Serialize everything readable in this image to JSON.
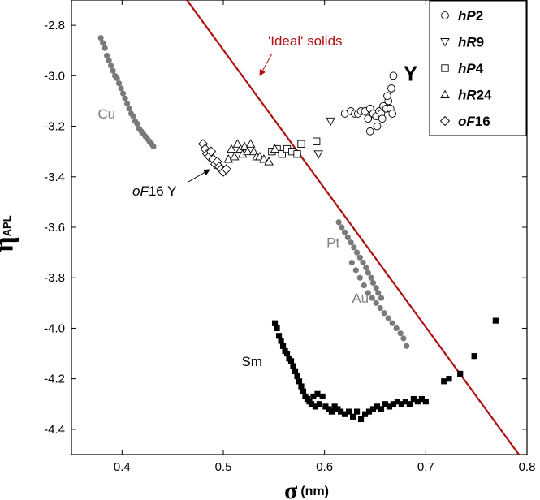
{
  "chart_data": {
    "type": "scatter",
    "title": "",
    "xlabel": "σ",
    "xlabel_unit": "(nm)",
    "ylabel": "η",
    "ylabel_sub": "APL",
    "xlim": [
      0.35,
      0.8
    ],
    "ylim": [
      -4.5,
      -2.7
    ],
    "xticks": [
      0.4,
      0.5,
      0.6,
      0.7,
      0.8
    ],
    "xtick_labels": [
      "0.4",
      "0.5",
      "0.6",
      "0.7",
      "0.8"
    ],
    "yticks": [
      -4.4,
      -4.2,
      -4.0,
      -3.8,
      -3.6,
      -3.4,
      -3.2,
      -3.0,
      -2.8
    ],
    "ytick_labels": [
      "-4.4",
      "-4.2",
      "-4.0",
      "-3.8",
      "-3.6",
      "-3.4",
      "-3.2",
      "-3.0",
      "-2.8"
    ],
    "grid": false,
    "legend_position": "top-right",
    "legend": [
      {
        "marker": "circle",
        "label": "hP2",
        "italic": "hP",
        "plain": "2"
      },
      {
        "marker": "triangle-down",
        "label": "hR9",
        "italic": "hR",
        "plain": "9"
      },
      {
        "marker": "square",
        "label": "hP4",
        "italic": "hP",
        "plain": "4"
      },
      {
        "marker": "triangle-up",
        "label": "hR24",
        "italic": "hR",
        "plain": "24"
      },
      {
        "marker": "diamond",
        "label": "oF16",
        "italic": "oF",
        "plain": "16"
      }
    ],
    "ideal_line": {
      "label": "'Ideal' solids",
      "color": "#b01010",
      "points": [
        [
          0.464,
          -2.7
        ],
        [
          0.792,
          -4.5
        ]
      ]
    },
    "annotations": [
      {
        "text": "Y",
        "x": 0.678,
        "y": -3.0,
        "color": "#000000",
        "bold": true
      },
      {
        "text": "Cu",
        "x": 0.376,
        "y": -3.15,
        "color": "#808080"
      },
      {
        "text": "Pt",
        "x": 0.602,
        "y": -3.66,
        "color": "#808080"
      },
      {
        "text": "Au",
        "x": 0.627,
        "y": -3.88,
        "color": "#808080"
      },
      {
        "text": "Sm",
        "x": 0.518,
        "y": -4.13,
        "color": "#000000"
      }
    ],
    "oF16_label": {
      "italic": "oF",
      "plain": "16 Y"
    },
    "series": [
      {
        "name": "Cu",
        "marker": "circle-filled",
        "color": "#7a7a7a",
        "x": [
          0.379,
          0.381,
          0.383,
          0.385,
          0.387,
          0.389,
          0.391,
          0.393,
          0.395,
          0.397,
          0.399,
          0.401,
          0.403,
          0.405,
          0.407,
          0.409,
          0.411,
          0.413,
          0.415,
          0.417,
          0.419,
          0.421,
          0.423,
          0.425,
          0.427,
          0.429,
          0.431
        ],
        "y": [
          -2.85,
          -2.87,
          -2.89,
          -2.92,
          -2.94,
          -2.96,
          -2.98,
          -3.0,
          -3.01,
          -3.03,
          -3.05,
          -3.07,
          -3.09,
          -3.11,
          -3.13,
          -3.15,
          -3.16,
          -3.18,
          -3.19,
          -3.21,
          -3.22,
          -3.23,
          -3.24,
          -3.25,
          -3.26,
          -3.27,
          -3.28
        ]
      },
      {
        "name": "Pt",
        "marker": "circle-filled",
        "color": "#7a7a7a",
        "x": [
          0.614,
          0.617,
          0.62,
          0.623,
          0.626,
          0.629,
          0.632,
          0.635,
          0.638,
          0.641,
          0.643,
          0.646,
          0.648,
          0.651,
          0.653,
          0.656
        ],
        "y": [
          -3.58,
          -3.6,
          -3.62,
          -3.64,
          -3.66,
          -3.68,
          -3.7,
          -3.72,
          -3.74,
          -3.76,
          -3.78,
          -3.8,
          -3.82,
          -3.84,
          -3.86,
          -3.88
        ]
      },
      {
        "name": "Au",
        "marker": "circle-filled",
        "color": "#7a7a7a",
        "x": [
          0.627,
          0.631,
          0.635,
          0.639,
          0.643,
          0.647,
          0.651,
          0.655,
          0.659,
          0.663,
          0.667,
          0.671,
          0.675,
          0.678,
          0.681
        ],
        "y": [
          -3.74,
          -3.77,
          -3.8,
          -3.83,
          -3.86,
          -3.88,
          -3.9,
          -3.92,
          -3.94,
          -3.96,
          -3.98,
          -4.0,
          -4.02,
          -4.04,
          -4.07
        ]
      },
      {
        "name": "Sm",
        "marker": "square-filled",
        "color": "#000000",
        "x": [
          0.551,
          0.553,
          0.555,
          0.557,
          0.559,
          0.561,
          0.563,
          0.565,
          0.567,
          0.569,
          0.571,
          0.573,
          0.575,
          0.577,
          0.579,
          0.581,
          0.583,
          0.585,
          0.587,
          0.589,
          0.591,
          0.593,
          0.595,
          0.598,
          0.601,
          0.604,
          0.607,
          0.61,
          0.613,
          0.616,
          0.62,
          0.624,
          0.628,
          0.632,
          0.636,
          0.64,
          0.644,
          0.648,
          0.652,
          0.656,
          0.66,
          0.664,
          0.668,
          0.672,
          0.676,
          0.68,
          0.684,
          0.688,
          0.692,
          0.696,
          0.7,
          0.718,
          0.723,
          0.734,
          0.748,
          0.769
        ],
        "y": [
          -3.98,
          -4.0,
          -4.03,
          -4.05,
          -4.07,
          -4.09,
          -4.1,
          -4.12,
          -4.13,
          -4.15,
          -4.17,
          -4.19,
          -4.21,
          -4.23,
          -4.25,
          -4.27,
          -4.28,
          -4.29,
          -4.3,
          -4.27,
          -4.31,
          -4.26,
          -4.3,
          -4.27,
          -4.31,
          -4.32,
          -4.33,
          -4.31,
          -4.32,
          -4.33,
          -4.34,
          -4.33,
          -4.35,
          -4.33,
          -4.36,
          -4.34,
          -4.33,
          -4.32,
          -4.31,
          -4.32,
          -4.3,
          -4.31,
          -4.3,
          -4.29,
          -4.3,
          -4.29,
          -4.3,
          -4.28,
          -4.29,
          -4.28,
          -4.29,
          -4.21,
          -4.2,
          -4.18,
          -4.11,
          -3.97
        ]
      },
      {
        "name": "hP2",
        "marker": "circle",
        "x": [
          0.62,
          0.626,
          0.63,
          0.633,
          0.636,
          0.64,
          0.643,
          0.645,
          0.648,
          0.651,
          0.654,
          0.656,
          0.658,
          0.661,
          0.663,
          0.666,
          0.668,
          0.662,
          0.665,
          0.667,
          0.645,
          0.652,
          0.657
        ],
        "y": [
          -3.15,
          -3.14,
          -3.15,
          -3.15,
          -3.14,
          -3.14,
          -3.17,
          -3.13,
          -3.15,
          -3.16,
          -3.14,
          -3.15,
          -3.12,
          -3.13,
          -3.1,
          -3.05,
          -3.0,
          -3.08,
          -3.13,
          -3.15,
          -3.22,
          -3.2,
          -3.17
        ]
      },
      {
        "name": "hR9",
        "marker": "triangle-down",
        "x": [
          0.606,
          0.594
        ],
        "y": [
          -3.18,
          -3.31
        ]
      },
      {
        "name": "hP4",
        "marker": "square",
        "x": [
          0.548,
          0.553,
          0.558,
          0.563,
          0.568,
          0.573,
          0.577,
          0.592
        ],
        "y": [
          -3.3,
          -3.29,
          -3.31,
          -3.29,
          -3.3,
          -3.31,
          -3.27,
          -3.26
        ]
      },
      {
        "name": "hR24",
        "marker": "triangle-up",
        "x": [
          0.505,
          0.508,
          0.511,
          0.514,
          0.517,
          0.519,
          0.521,
          0.524,
          0.527,
          0.53,
          0.533,
          0.536,
          0.54,
          0.545,
          0.551
        ],
        "y": [
          -3.33,
          -3.29,
          -3.32,
          -3.27,
          -3.29,
          -3.31,
          -3.28,
          -3.3,
          -3.27,
          -3.3,
          -3.32,
          -3.32,
          -3.33,
          -3.34,
          -3.29
        ]
      },
      {
        "name": "oF16",
        "marker": "diamond",
        "x": [
          0.48,
          0.482,
          0.484,
          0.486,
          0.488,
          0.49,
          0.492,
          0.494,
          0.496,
          0.498,
          0.5,
          0.503
        ],
        "y": [
          -3.27,
          -3.29,
          -3.31,
          -3.32,
          -3.3,
          -3.33,
          -3.35,
          -3.34,
          -3.36,
          -3.37,
          -3.38,
          -3.37
        ]
      }
    ]
  }
}
